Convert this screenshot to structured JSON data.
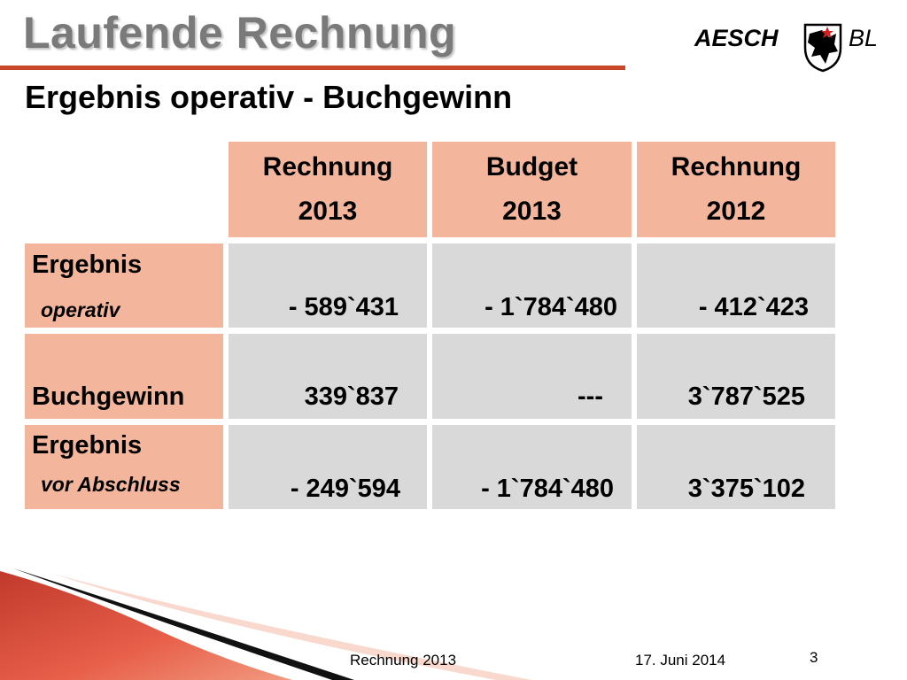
{
  "slide": {
    "title": "Laufende Rechnung",
    "subtitle": "Ergebnis operativ - Buchgewinn",
    "logo": {
      "left": "AESCH",
      "right": "BL",
      "icon": "coat-of-arms-icon"
    },
    "colors": {
      "accent": "#c9482a",
      "header_fill": "#f3b59b",
      "value_fill": "#d9d9d9",
      "title_gray": "#7a7a7a"
    }
  },
  "table": {
    "columns": [
      {
        "line1": "Rechnung",
        "line2": "2013"
      },
      {
        "line1": "Budget",
        "line2": "2013"
      },
      {
        "line1": "Rechnung",
        "line2": "2012"
      }
    ],
    "rows": [
      {
        "label": "Ergebnis",
        "sublabel": "operativ",
        "values": [
          "- 589`431",
          "- 1`784`480",
          "- 412`423"
        ]
      },
      {
        "label": "Buchgewinn",
        "sublabel": "",
        "values": [
          "339`837",
          "---",
          "3`787`525"
        ]
      },
      {
        "label": "Ergebnis",
        "sublabel": "vor Abschluss",
        "values": [
          "- 249`594",
          "- 1`784`480",
          "3`375`102"
        ]
      }
    ]
  },
  "footer": {
    "center": "Rechnung 2013",
    "date": "17. Juni 2014",
    "page": "3"
  }
}
